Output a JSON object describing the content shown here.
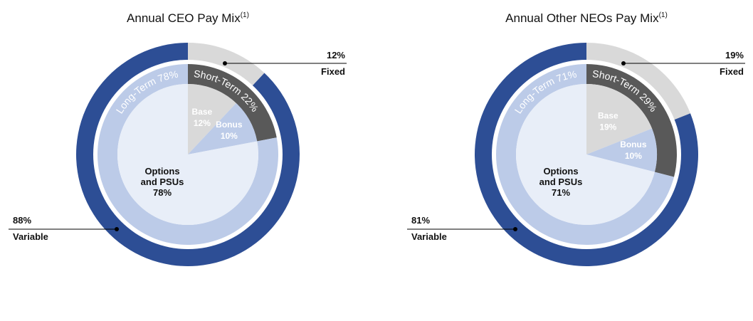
{
  "colors": {
    "variable_ring": "#2d4e95",
    "fixed_ring": "#d9d9d9",
    "long_term_ring": "#bccbe8",
    "short_term_ring": "#595959",
    "base_slice": "#d9d9d9",
    "bonus_slice": "#bccbe8",
    "options_slice": "#e8eef8",
    "leader_line": "#000000",
    "dark_text": "#111111",
    "light_text": "#ffffff"
  },
  "chart_data": [
    {
      "type": "pie",
      "title": "Annual CEO Pay Mix",
      "title_sup": "(1)",
      "outer_ring": [
        {
          "name": "Fixed",
          "value": 12,
          "label_value": "12%",
          "label_name": "Fixed"
        },
        {
          "name": "Variable",
          "value": 88,
          "label_value": "88%",
          "label_name": "Variable"
        }
      ],
      "middle_ring": [
        {
          "name": "Short-Term",
          "value": 22,
          "label": "Short-Term 22%"
        },
        {
          "name": "Long-Term",
          "value": 78,
          "label": "Long-Term 78%"
        }
      ],
      "inner_pie": [
        {
          "name": "Base",
          "value": 12,
          "label_name": "Base",
          "label_value": "12%"
        },
        {
          "name": "Bonus",
          "value": 10,
          "label_name": "Bonus",
          "label_value": "10%"
        },
        {
          "name": "Options and PSUs",
          "value": 78,
          "label_line1": "Options",
          "label_line2": "and PSUs",
          "label_value": "78%"
        }
      ]
    },
    {
      "type": "pie",
      "title": "Annual Other NEOs Pay Mix",
      "title_sup": "(1)",
      "outer_ring": [
        {
          "name": "Fixed",
          "value": 19,
          "label_value": "19%",
          "label_name": "Fixed"
        },
        {
          "name": "Variable",
          "value": 81,
          "label_value": "81%",
          "label_name": "Variable"
        }
      ],
      "middle_ring": [
        {
          "name": "Short-Term",
          "value": 29,
          "label": "Short-Term 29%"
        },
        {
          "name": "Long-Term",
          "value": 71,
          "label": "Long-Term 71%"
        }
      ],
      "inner_pie": [
        {
          "name": "Base",
          "value": 19,
          "label_name": "Base",
          "label_value": "19%"
        },
        {
          "name": "Bonus",
          "value": 10,
          "label_name": "Bonus",
          "label_value": "10%"
        },
        {
          "name": "Options and PSUs",
          "value": 71,
          "label_line1": "Options",
          "label_line2": "and PSUs",
          "label_value": "71%"
        }
      ]
    }
  ]
}
